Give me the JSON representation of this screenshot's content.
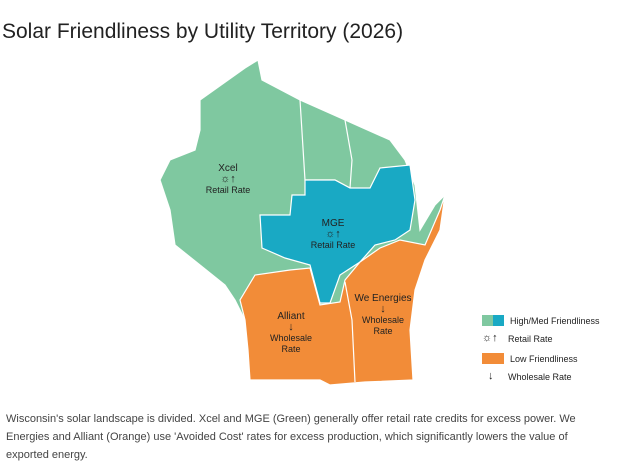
{
  "title": "Solar Friendliness by Utility Territory (2026)",
  "regions": [
    {
      "name": "Xcel",
      "icon": "☼↑",
      "note": "Retail Rate"
    },
    {
      "name": "MGE",
      "icon": "☼↑",
      "note": "Retail Rate"
    },
    {
      "name": "Alliant",
      "icon": "↓",
      "note": "Wholesale Rate"
    },
    {
      "name": "We Energies",
      "icon": "↓",
      "note": "Wholesale Rate"
    }
  ],
  "legend": [
    {
      "label": "High/Med Friendliness"
    },
    {
      "icon": "☼↑",
      "label": "Retail Rate"
    },
    {
      "label": "Low Friendliness"
    },
    {
      "icon": "↓",
      "label": "Wholesale Rate"
    }
  ],
  "caption": "Wisconsin's solar landscape is divided. Xcel and MGE (Green) generally offer retail rate credits for excess power. We Energies and Alliant (Orange) use 'Avoided Cost' rates for excess production, which significantly lowers the value of exported energy."
}
